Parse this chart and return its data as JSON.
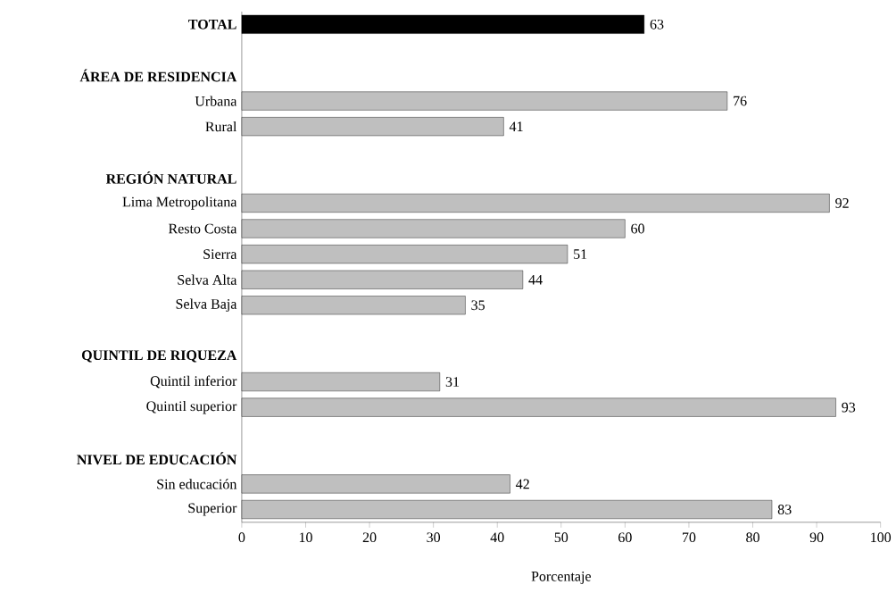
{
  "chart_data": {
    "type": "bar",
    "orientation": "horizontal",
    "xlabel": "Porcentaje",
    "categories": [
      "**TOTAL**",
      null,
      "ÁREA DE RESIDENCIA",
      "Urbana",
      "Rural",
      null,
      "REGIÓN NATURAL",
      "Lima Metropolitana",
      "Resto Costa",
      "Sierra",
      "Selva Alta",
      "Selva Baja",
      null,
      "QUINTIL DE RIQUEZA",
      "Quintil inferior",
      "Quintil superior",
      null,
      "NIVEL DE EDUCACIÓN",
      "Sin educación",
      "Superior"
    ],
    "values": [
      63,
      null,
      null,
      76,
      41,
      null,
      null,
      92,
      60,
      51,
      44,
      35,
      null,
      null,
      31,
      93,
      null,
      null,
      42,
      83
    ],
    "colors": [
      "#000000",
      null,
      null,
      "#bfbfbf",
      "#bfbfbf",
      null,
      null,
      "#bfbfbf",
      "#bfbfbf",
      "#bfbfbf",
      "#bfbfbf",
      "#bfbfbf",
      null,
      null,
      "#bfbfbf",
      "#bfbfbf",
      null,
      null,
      "#bfbfbf",
      "#bfbfbf"
    ],
    "xlim": [
      0,
      100
    ],
    "xticks": [
      0,
      10,
      20,
      30,
      40,
      50,
      60,
      70,
      80,
      90,
      100
    ],
    "data_labels": true,
    "grid": false
  }
}
